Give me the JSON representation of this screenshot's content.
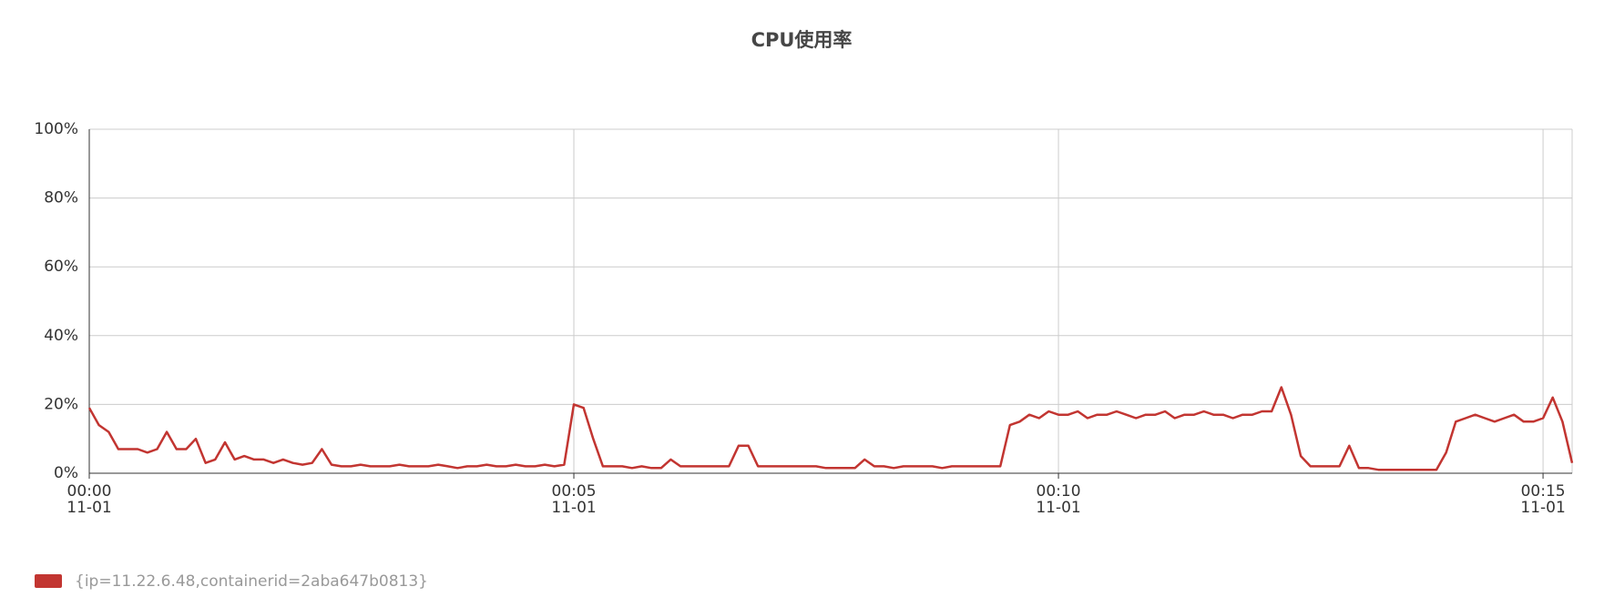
{
  "chart_data": {
    "type": "line",
    "title": "CPU使用率",
    "x": [
      0,
      0.1,
      0.2,
      0.3,
      0.4,
      0.5,
      0.6,
      0.7,
      0.8,
      0.9,
      1,
      1.1,
      1.2,
      1.3,
      1.4,
      1.5,
      1.6,
      1.7,
      1.8,
      1.9,
      2,
      2.1,
      2.2,
      2.3,
      2.4,
      2.5,
      2.6,
      2.7,
      2.8,
      2.9,
      3,
      3.1,
      3.2,
      3.3,
      3.4,
      3.5,
      3.6,
      3.7,
      3.8,
      3.9,
      4,
      4.1,
      4.2,
      4.3,
      4.4,
      4.5,
      4.6,
      4.7,
      4.8,
      4.9,
      5,
      5.1,
      5.2,
      5.3,
      5.4,
      5.5,
      5.6,
      5.7,
      5.8,
      5.9,
      6,
      6.1,
      6.2,
      6.3,
      6.4,
      6.5,
      6.6,
      6.7,
      6.8,
      6.9,
      7,
      7.1,
      7.2,
      7.3,
      7.4,
      7.5,
      7.6,
      7.7,
      7.8,
      7.9,
      8,
      8.1,
      8.2,
      8.3,
      8.4,
      8.5,
      8.6,
      8.7,
      8.8,
      8.9,
      9,
      9.1,
      9.2,
      9.3,
      9.4,
      9.5,
      9.6,
      9.7,
      9.8,
      9.9,
      10,
      10.1,
      10.2,
      10.3,
      10.4,
      10.5,
      10.6,
      10.7,
      10.8,
      10.9,
      11,
      11.1,
      11.2,
      11.3,
      11.4,
      11.5,
      11.6,
      11.7,
      11.8,
      11.9,
      12,
      12.1,
      12.2,
      12.3,
      12.4,
      12.5,
      12.6,
      12.7,
      12.8,
      12.9,
      13,
      13.1,
      13.2,
      13.3,
      13.4,
      13.5,
      13.6,
      13.7,
      13.8,
      13.9,
      14,
      14.1,
      14.2,
      14.3,
      14.4,
      14.5,
      14.6,
      14.7,
      14.8,
      14.9,
      15,
      15.1,
      15.2,
      15.3
    ],
    "series": [
      {
        "name": "{ip=11.22.6.48,containerid=2aba647b0813}",
        "color": "#c23531",
        "values": [
          19,
          14,
          12,
          7,
          7,
          7,
          6,
          7,
          12,
          7,
          7,
          10,
          3,
          4,
          9,
          4,
          5,
          4,
          4,
          3,
          4,
          3,
          2.5,
          3,
          7,
          2.5,
          2,
          2,
          2.5,
          2,
          2,
          2,
          2.5,
          2,
          2,
          2,
          2.5,
          2,
          1.5,
          2,
          2,
          2.5,
          2,
          2,
          2.5,
          2,
          2,
          2.5,
          2,
          2.5,
          20,
          19,
          10,
          2,
          2,
          2,
          1.5,
          2,
          1.5,
          1.5,
          4,
          2,
          2,
          2,
          2,
          2,
          2,
          8,
          8,
          2,
          2,
          2,
          2,
          2,
          2,
          2,
          1.5,
          1.5,
          1.5,
          1.5,
          4,
          2,
          2,
          1.5,
          2,
          2,
          2,
          2,
          1.5,
          2,
          2,
          2,
          2,
          2,
          2,
          14,
          15,
          17,
          16,
          18,
          17,
          17,
          18,
          16,
          17,
          17,
          18,
          17,
          16,
          17,
          17,
          18,
          16,
          17,
          17,
          18,
          17,
          17,
          16,
          17,
          17,
          18,
          18,
          25,
          17,
          5,
          2,
          2,
          2,
          2,
          8,
          1.5,
          1.5,
          1,
          1,
          1,
          1,
          1,
          1,
          1,
          6,
          15,
          16,
          17,
          16,
          15,
          16,
          17,
          15,
          15,
          16,
          22,
          15,
          3
        ]
      }
    ],
    "xlim": [
      0,
      15.3
    ],
    "xticks": [
      {
        "value": 0,
        "label": [
          "00:00",
          "11-01"
        ]
      },
      {
        "value": 5,
        "label": [
          "00:05",
          "11-01"
        ]
      },
      {
        "value": 10,
        "label": [
          "00:10",
          "11-01"
        ]
      },
      {
        "value": 15,
        "label": [
          "00:15",
          "11-01"
        ]
      }
    ],
    "ylim": [
      0,
      100
    ],
    "yticks": [
      {
        "value": 0,
        "label": "0%"
      },
      {
        "value": 20,
        "label": "20%"
      },
      {
        "value": 40,
        "label": "40%"
      },
      {
        "value": 60,
        "label": "60%"
      },
      {
        "value": 80,
        "label": "80%"
      },
      {
        "value": 100,
        "label": "100%"
      }
    ],
    "grid": true
  }
}
